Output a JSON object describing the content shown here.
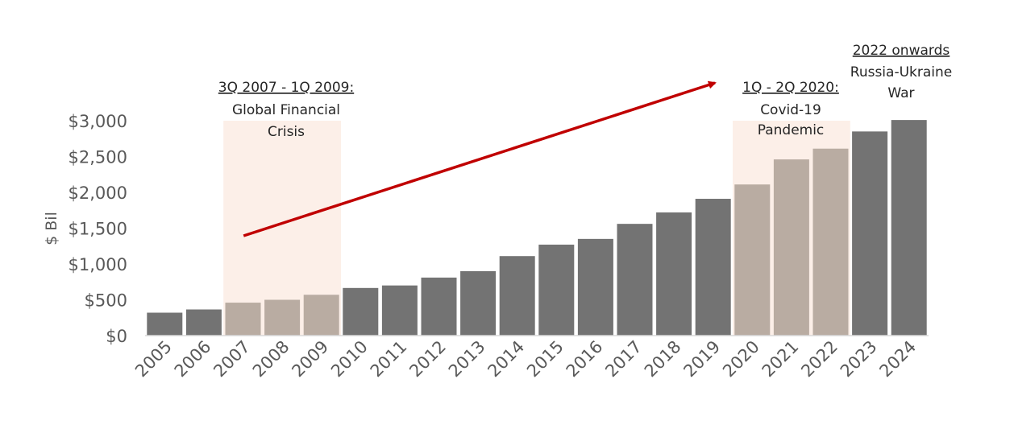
{
  "chart_data": {
    "type": "bar",
    "title": "",
    "xlabel": "",
    "ylabel": "$ Bil",
    "ylim": [
      0,
      3000
    ],
    "yticks": [
      0,
      500,
      1000,
      1500,
      2000,
      2500,
      3000
    ],
    "ytick_labels": [
      "$0",
      "$500",
      "$1,000",
      "$1,500",
      "$2,000",
      "$2,500",
      "$3,000"
    ],
    "categories": [
      "2005",
      "2006",
      "2007",
      "2008",
      "2009",
      "2010",
      "2011",
      "2012",
      "2013",
      "2014",
      "2015",
      "2016",
      "2017",
      "2018",
      "2019",
      "2020",
      "2021",
      "2022",
      "2023",
      "2024"
    ],
    "values": [
      320,
      365,
      460,
      500,
      570,
      665,
      700,
      810,
      900,
      1110,
      1270,
      1350,
      1560,
      1720,
      1910,
      2110,
      2460,
      2610,
      2850,
      3010
    ],
    "grid": false,
    "colors": {
      "bar": "#737373",
      "bar_highlight": "#b9aca2",
      "shade": "#fcefe8",
      "arrow": "#c00000",
      "axis": "#d9d9d9",
      "tick_text": "#595959",
      "annotation_text": "#262626"
    },
    "highlight_years": [
      "2007",
      "2008",
      "2009",
      "2020",
      "2021",
      "2022"
    ],
    "shaded_periods": [
      {
        "from": "2007",
        "to": "2009"
      },
      {
        "from": "2020",
        "to": "2022"
      }
    ],
    "annotations": [
      {
        "heading": "3Q 2007 - 1Q 2009:",
        "lines": [
          "Global Financial",
          "Crisis"
        ]
      },
      {
        "heading": "1Q - 2Q 2020:",
        "lines": [
          "Covid-19",
          "Pandemic"
        ]
      },
      {
        "heading": "2022 onwards",
        "lines": [
          "Russia-Ukraine",
          "War"
        ]
      }
    ],
    "trend_arrow": {
      "direction": "up"
    }
  }
}
